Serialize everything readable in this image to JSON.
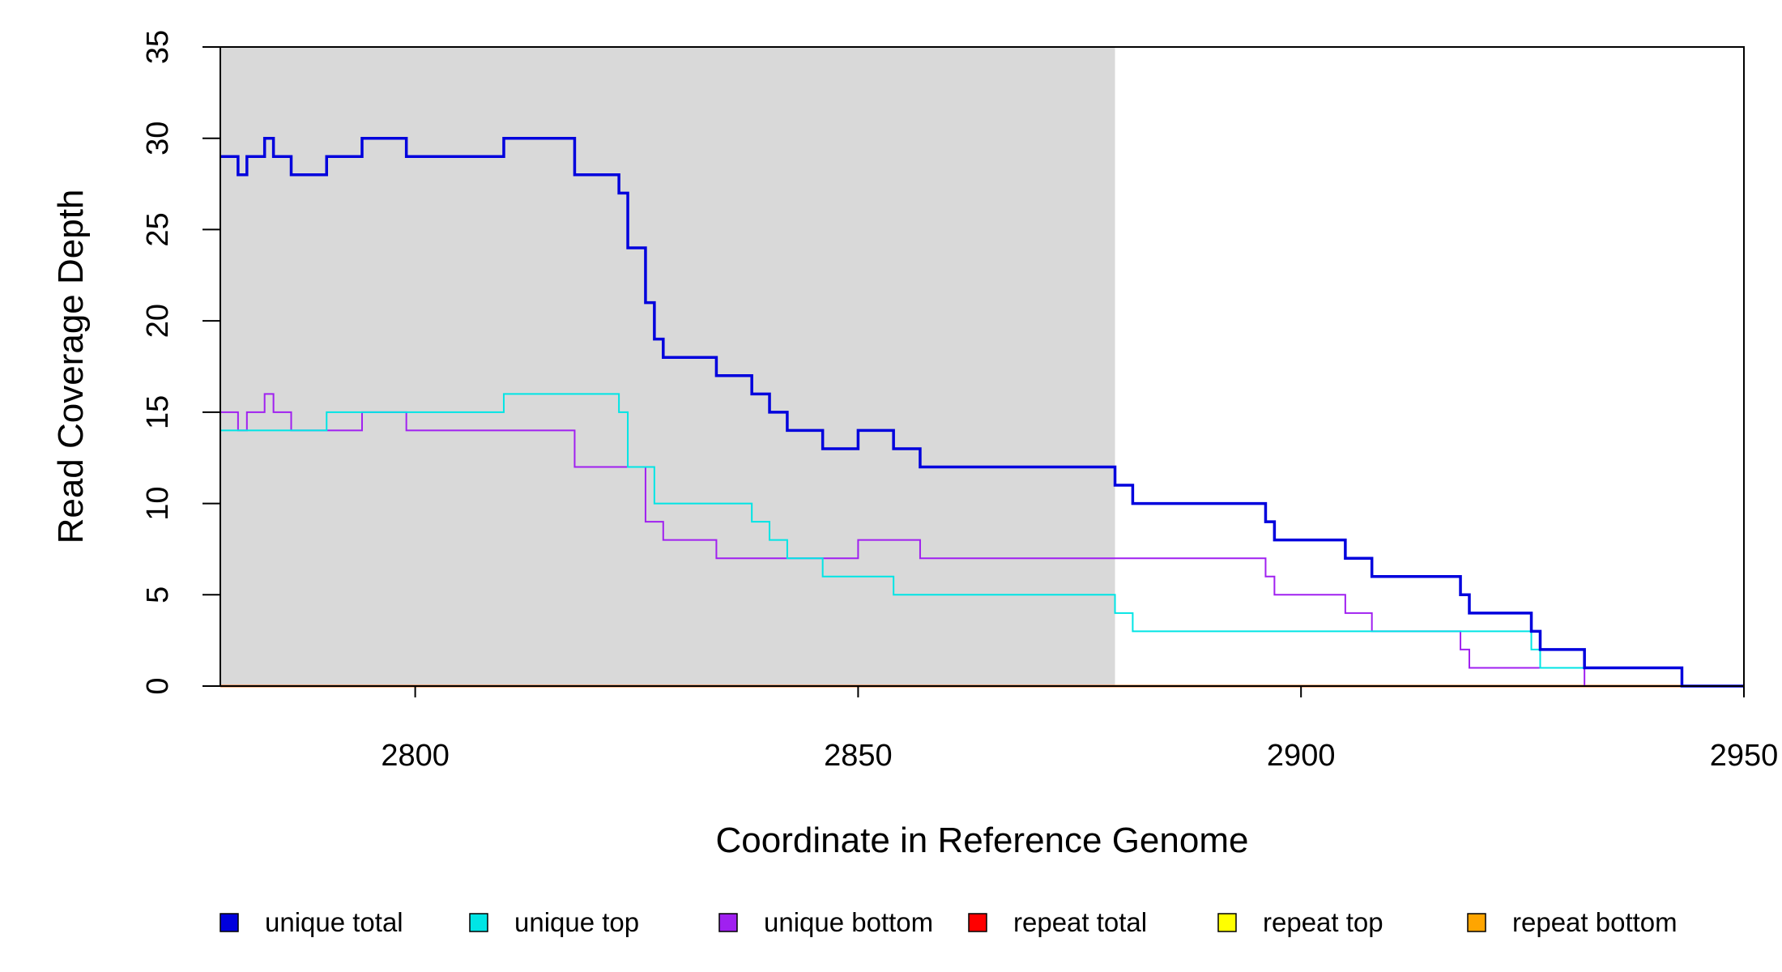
{
  "chart_data": {
    "type": "line",
    "title": "",
    "xlabel": "Coordinate in Reference Genome",
    "ylabel": "Read Coverage Depth",
    "xlim": [
      2778,
      2950
    ],
    "ylim": [
      0,
      35
    ],
    "x_ticks": [
      "2800",
      "2850",
      "2900",
      "2950"
    ],
    "y_ticks": [
      "0",
      "5",
      "10",
      "15",
      "20",
      "25",
      "30",
      "35"
    ],
    "shaded_region": {
      "x_start": 2778,
      "x_end": 2879,
      "color": "#d9d9d9"
    },
    "legend_position": "bottom",
    "series": [
      {
        "name": "unique total",
        "color": "#0000dd",
        "steps": [
          [
            2778,
            29
          ],
          [
            2780,
            28
          ],
          [
            2781,
            29
          ],
          [
            2783,
            30
          ],
          [
            2784,
            29
          ],
          [
            2786,
            28
          ],
          [
            2790,
            29
          ],
          [
            2794,
            30
          ],
          [
            2799,
            29
          ],
          [
            2810,
            30
          ],
          [
            2818,
            28
          ],
          [
            2823,
            27
          ],
          [
            2824,
            24
          ],
          [
            2826,
            21
          ],
          [
            2827,
            19
          ],
          [
            2828,
            18
          ],
          [
            2834,
            17
          ],
          [
            2838,
            16
          ],
          [
            2840,
            15
          ],
          [
            2842,
            14
          ],
          [
            2846,
            13
          ],
          [
            2850,
            14
          ],
          [
            2854,
            13
          ],
          [
            2857,
            12
          ],
          [
            2879,
            11
          ],
          [
            2881,
            10
          ],
          [
            2896,
            9
          ],
          [
            2897,
            8
          ],
          [
            2905,
            7
          ],
          [
            2908,
            6
          ],
          [
            2918,
            5
          ],
          [
            2919,
            4
          ],
          [
            2926,
            3
          ],
          [
            2927,
            2
          ],
          [
            2932,
            1
          ],
          [
            2943,
            0
          ],
          [
            2950,
            0
          ]
        ]
      },
      {
        "name": "unique top",
        "color": "#00e5e5",
        "steps": [
          [
            2778,
            14
          ],
          [
            2790,
            15
          ],
          [
            2810,
            16
          ],
          [
            2823,
            15
          ],
          [
            2824,
            12
          ],
          [
            2826,
            12
          ],
          [
            2827,
            10
          ],
          [
            2838,
            9
          ],
          [
            2840,
            8
          ],
          [
            2842,
            7
          ],
          [
            2846,
            6
          ],
          [
            2854,
            5
          ],
          [
            2879,
            4
          ],
          [
            2881,
            3
          ],
          [
            2926,
            2
          ],
          [
            2927,
            1
          ],
          [
            2943,
            0
          ],
          [
            2950,
            0
          ]
        ]
      },
      {
        "name": "unique bottom",
        "color": "#a020f0",
        "steps": [
          [
            2778,
            15
          ],
          [
            2780,
            14
          ],
          [
            2781,
            15
          ],
          [
            2783,
            16
          ],
          [
            2784,
            15
          ],
          [
            2786,
            14
          ],
          [
            2794,
            15
          ],
          [
            2799,
            14
          ],
          [
            2818,
            12
          ],
          [
            2826,
            9
          ],
          [
            2828,
            8
          ],
          [
            2834,
            7
          ],
          [
            2850,
            8
          ],
          [
            2857,
            7
          ],
          [
            2896,
            6
          ],
          [
            2897,
            5
          ],
          [
            2905,
            4
          ],
          [
            2908,
            3
          ],
          [
            2918,
            2
          ],
          [
            2919,
            1
          ],
          [
            2932,
            0
          ],
          [
            2950,
            0
          ]
        ]
      },
      {
        "name": "repeat total",
        "color": "#ff0000",
        "steps": [
          [
            2778,
            0
          ],
          [
            2950,
            0
          ]
        ]
      },
      {
        "name": "repeat top",
        "color": "#ffff00",
        "steps": [
          [
            2778,
            0
          ],
          [
            2950,
            0
          ]
        ]
      },
      {
        "name": "repeat bottom",
        "color": "#ffa500",
        "steps": [
          [
            2778,
            0
          ],
          [
            2950,
            0
          ]
        ]
      }
    ]
  }
}
